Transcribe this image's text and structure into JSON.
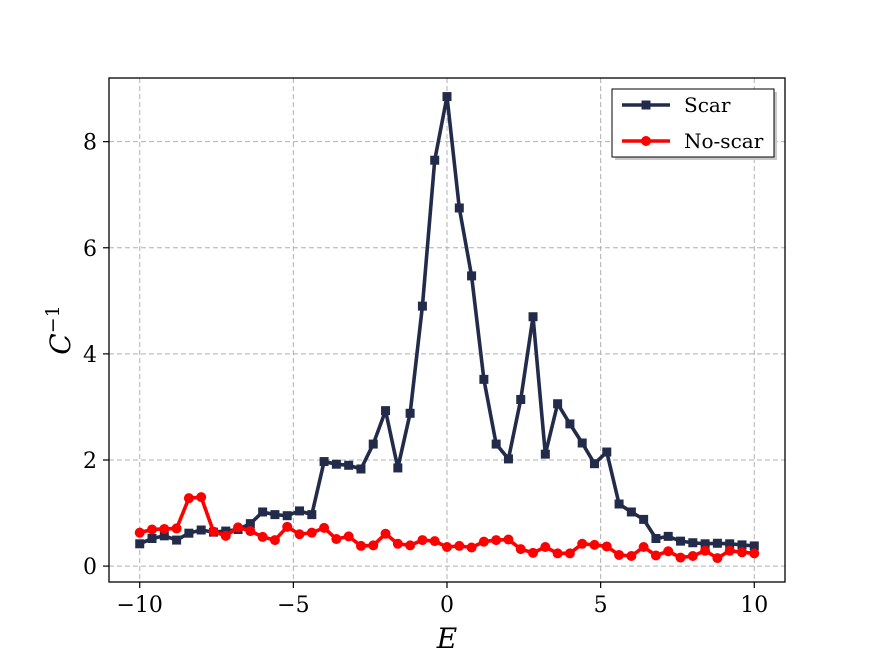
{
  "chart_data": {
    "type": "line",
    "xlabel": "E",
    "ylabel": "C",
    "ylabel_superscript": "−1",
    "xlim": [
      -11,
      11
    ],
    "ylim": [
      -0.3,
      9.2
    ],
    "xticks": [
      -10,
      -5,
      0,
      5,
      10
    ],
    "xtick_labels": [
      "−10",
      "−5",
      "0",
      "5",
      "10"
    ],
    "yticks": [
      0,
      2,
      4,
      6,
      8
    ],
    "ytick_labels": [
      "0",
      "2",
      "4",
      "6",
      "8"
    ],
    "grid": true,
    "legend_position": "top-right",
    "x": [
      -10,
      -9.6,
      -9.2,
      -8.8,
      -8.4,
      -8.0,
      -7.6,
      -7.2,
      -6.8,
      -6.4,
      -6.0,
      -5.6,
      -5.2,
      -4.8,
      -4.4,
      -4.0,
      -3.6,
      -3.2,
      -2.8,
      -2.4,
      -2.0,
      -1.6,
      -1.2,
      -0.8,
      -0.4,
      0.0,
      0.4,
      0.8,
      1.2,
      1.6,
      2.0,
      2.4,
      2.8,
      3.2,
      3.6,
      4.0,
      4.4,
      4.8,
      5.2,
      5.6,
      6.0,
      6.4,
      6.8,
      7.2,
      7.6,
      8.0,
      8.4,
      8.8,
      9.2,
      9.6,
      10.0
    ],
    "series": [
      {
        "name": "Scar",
        "color": "#232b4a",
        "marker": "square",
        "values": [
          0.42,
          0.52,
          0.57,
          0.49,
          0.62,
          0.68,
          0.64,
          0.66,
          0.69,
          0.8,
          1.02,
          0.97,
          0.95,
          1.04,
          0.97,
          1.97,
          1.92,
          1.9,
          1.83,
          2.3,
          2.93,
          1.85,
          2.88,
          4.9,
          7.65,
          8.85,
          6.75,
          5.47,
          3.52,
          2.3,
          2.02,
          3.14,
          4.7,
          2.11,
          3.06,
          2.68,
          2.32,
          1.93,
          2.15,
          1.17,
          1.02,
          0.88,
          0.52,
          0.56,
          0.47,
          0.44,
          0.42,
          0.43,
          0.42,
          0.4,
          0.38
        ]
      },
      {
        "name": "No-scar",
        "color": "#ff0000",
        "marker": "circle",
        "values": [
          0.63,
          0.69,
          0.7,
          0.71,
          1.28,
          1.3,
          0.65,
          0.57,
          0.73,
          0.66,
          0.55,
          0.49,
          0.74,
          0.6,
          0.63,
          0.72,
          0.51,
          0.56,
          0.38,
          0.39,
          0.61,
          0.42,
          0.39,
          0.49,
          0.47,
          0.36,
          0.38,
          0.35,
          0.46,
          0.49,
          0.5,
          0.32,
          0.25,
          0.36,
          0.24,
          0.24,
          0.42,
          0.4,
          0.37,
          0.21,
          0.19,
          0.36,
          0.2,
          0.28,
          0.16,
          0.19,
          0.29,
          0.15,
          0.29,
          0.26,
          0.24
        ]
      }
    ]
  }
}
